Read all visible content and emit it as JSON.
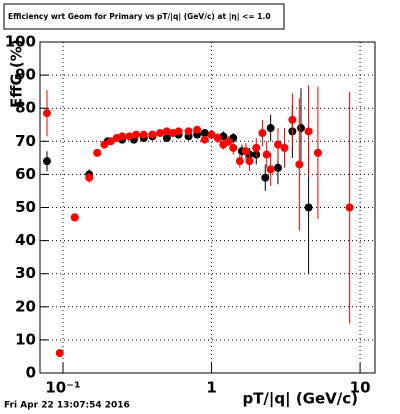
{
  "chart_data": {
    "type": "scatter",
    "title": "Efficiency wrt Geom for Primary vs pT/|q| (GeV/c) at |η| <= 1.0",
    "x_label": "pT/|q| (GeV/c)",
    "y_label": "EffG (%)",
    "timestamp": "Fri Apr 22 13:07:54 2016",
    "log_x": true,
    "grid": true,
    "xlim": [
      0.07,
      12.6
    ],
    "ylim": [
      0,
      100
    ],
    "xticks": [
      {
        "value": 0.1,
        "label": "10⁻¹"
      },
      1,
      10
    ],
    "yticks": [
      0,
      10,
      20,
      30,
      40,
      50,
      60,
      70,
      80,
      90,
      100
    ],
    "series": [
      {
        "color": "#000000",
        "x": [
          0.078,
          0.12,
          0.15,
          0.2,
          0.25,
          0.3,
          0.35,
          0.4,
          0.5,
          0.6,
          0.7,
          0.8,
          0.9,
          1.0,
          1.2,
          1.4,
          1.6,
          1.8,
          2.0,
          2.3,
          2.5,
          2.8,
          3.5,
          4.0,
          4.5
        ],
        "values": [
          64,
          47,
          60,
          70,
          70.5,
          70.5,
          71,
          71.5,
          71,
          72,
          71.5,
          72,
          72.5,
          72,
          71.5,
          71,
          67,
          66,
          66,
          59,
          74,
          62,
          73,
          74,
          50
        ],
        "errors": [
          3,
          1,
          1.5,
          1,
          1,
          1,
          1,
          1,
          1,
          1,
          1,
          1,
          1,
          1,
          1.5,
          1.5,
          2,
          2,
          3,
          4,
          4,
          5,
          8,
          12,
          20
        ]
      },
      {
        "color": "#ff0000",
        "x": [
          0.078,
          0.095,
          0.12,
          0.15,
          0.17,
          0.19,
          0.21,
          0.23,
          0.25,
          0.28,
          0.31,
          0.35,
          0.4,
          0.45,
          0.5,
          0.55,
          0.6,
          0.7,
          0.8,
          0.9,
          1.0,
          1.1,
          1.2,
          1.3,
          1.4,
          1.55,
          1.7,
          1.8,
          2.0,
          2.2,
          2.35,
          2.5,
          2.8,
          3.1,
          3.5,
          3.9,
          4.5,
          5.2,
          8.5
        ],
        "values": [
          78.5,
          6,
          47,
          59,
          66.5,
          69,
          70,
          71,
          71.5,
          71.5,
          72,
          72,
          72,
          72.5,
          73,
          72.5,
          73,
          73,
          73.5,
          70.5,
          72,
          71,
          69,
          70,
          68,
          64,
          67,
          64,
          68,
          72.5,
          66,
          61.5,
          69,
          68,
          76.5,
          63,
          73,
          66.5,
          50
        ],
        "errors": [
          7,
          1,
          1,
          1.5,
          1,
          1,
          1,
          1,
          1,
          1,
          1,
          1,
          1,
          1,
          1,
          1,
          1,
          1,
          1,
          1,
          1,
          1.5,
          1.5,
          1.5,
          2,
          2,
          2.5,
          3,
          3,
          4,
          4,
          5,
          5,
          6,
          8,
          20,
          14,
          20,
          35
        ]
      }
    ]
  }
}
